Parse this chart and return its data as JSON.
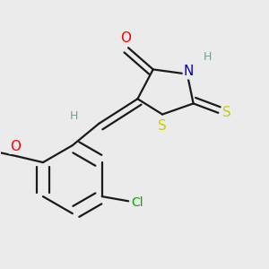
{
  "bg_color": "#ebebeb",
  "bond_color": "#1a1a1a",
  "bond_width": 1.6,
  "atom_colors": {
    "O": "#ff0000",
    "N": "#0000cd",
    "S": "#cccc00",
    "Cl": "#00aa00",
    "H": "#7a9a9a",
    "C": "#1a1a1a"
  },
  "font_size_atom": 11,
  "font_size_h": 9,
  "font_size_cl": 10
}
